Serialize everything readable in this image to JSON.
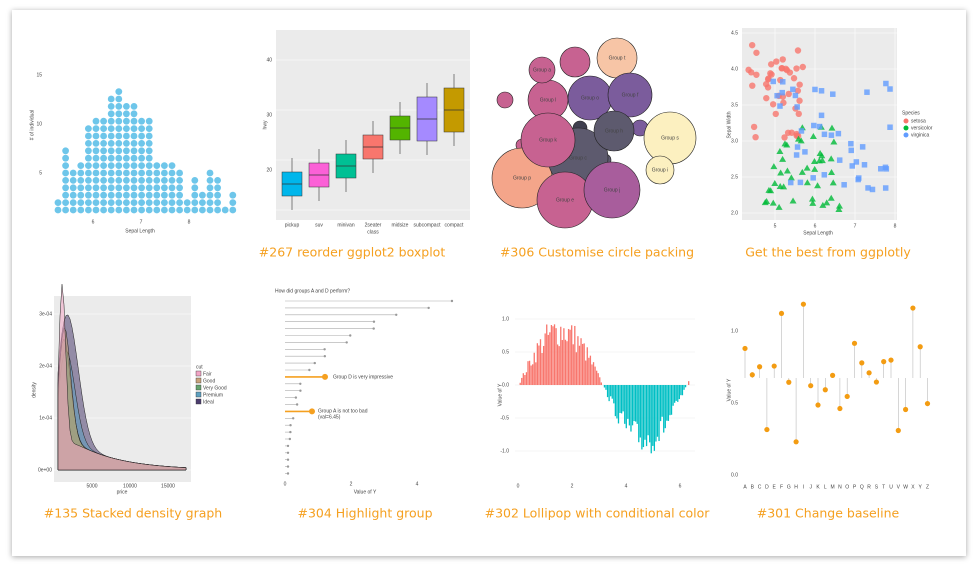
{
  "gallery": {
    "items": [
      {
        "ylabel": "# of individual",
        "xlabel": "Sepal Length",
        "yticks": [
          "5",
          "10",
          "15"
        ],
        "xticks": [
          "6",
          "7",
          "8"
        ]
      },
      {
        "caption": "#267 reorder ggplot2 boxplot",
        "ylabel": "hwy",
        "xlabel": "class",
        "yticks": [
          "20",
          "30",
          "40"
        ],
        "xticks": [
          "pickup",
          "suv",
          "minivan",
          "2seater",
          "midsize",
          "subcompact",
          "compact"
        ]
      },
      {
        "caption": "#306 Customise circle packing",
        "labels": [
          "Group p",
          "Group c",
          "Group o",
          "Group l",
          "Group k",
          "Group t",
          "Group f",
          "Group h",
          "Group s",
          "Group e",
          "Group j",
          "Group i",
          "Group a"
        ]
      },
      {
        "caption": "Get the best from ggplotly",
        "ylabel": "Sepal Width",
        "xlabel": "Sepal Length",
        "yticks": [
          "2.0",
          "2.5",
          "3.0",
          "3.5",
          "4.0",
          "4.5"
        ],
        "xticks": [
          "5",
          "6",
          "7",
          "8"
        ],
        "legend_title": "Species",
        "legend": [
          "setosa",
          "versicolor",
          "virginica"
        ]
      },
      {
        "caption": "#135 Stacked density graph",
        "ylabel": "density",
        "xlabel": "price",
        "yticks": [
          "0e+00",
          "1e-04",
          "2e-04",
          "3e-04"
        ],
        "xticks": [
          "5000",
          "10000",
          "15000"
        ],
        "legend_title": "cut",
        "legend": [
          "Fair",
          "Good",
          "Very Good",
          "Premium",
          "Ideal"
        ]
      },
      {
        "caption": "#304 Highlight group",
        "title": "How did groups A and D perform?",
        "annotations": [
          "Group D is very impressive",
          "Group A is not too bad",
          "(val=6.45)"
        ],
        "xlabel": "Value of Y",
        "xticks": [
          "0",
          "2",
          "4"
        ]
      },
      {
        "caption": "#302 Lollipop with conditional color",
        "ylabel": "Value of Y",
        "yticks": [
          "1.0",
          "0.5",
          "0.0",
          "-0.5",
          "-1.0"
        ],
        "xticks": [
          "0",
          "2",
          "4",
          "6"
        ]
      },
      {
        "caption": "#301 Change baseline",
        "ylabel": "Value of Y",
        "yticks": [
          "1.0",
          "0.5",
          "0.0"
        ],
        "xticks": [
          "A",
          "B",
          "C",
          "D",
          "E",
          "F",
          "G",
          "H",
          "I",
          "J",
          "K",
          "L",
          "M",
          "N",
          "O",
          "P",
          "Q",
          "R",
          "S",
          "T",
          "U",
          "V",
          "W",
          "X",
          "Y",
          "Z"
        ]
      }
    ]
  }
}
